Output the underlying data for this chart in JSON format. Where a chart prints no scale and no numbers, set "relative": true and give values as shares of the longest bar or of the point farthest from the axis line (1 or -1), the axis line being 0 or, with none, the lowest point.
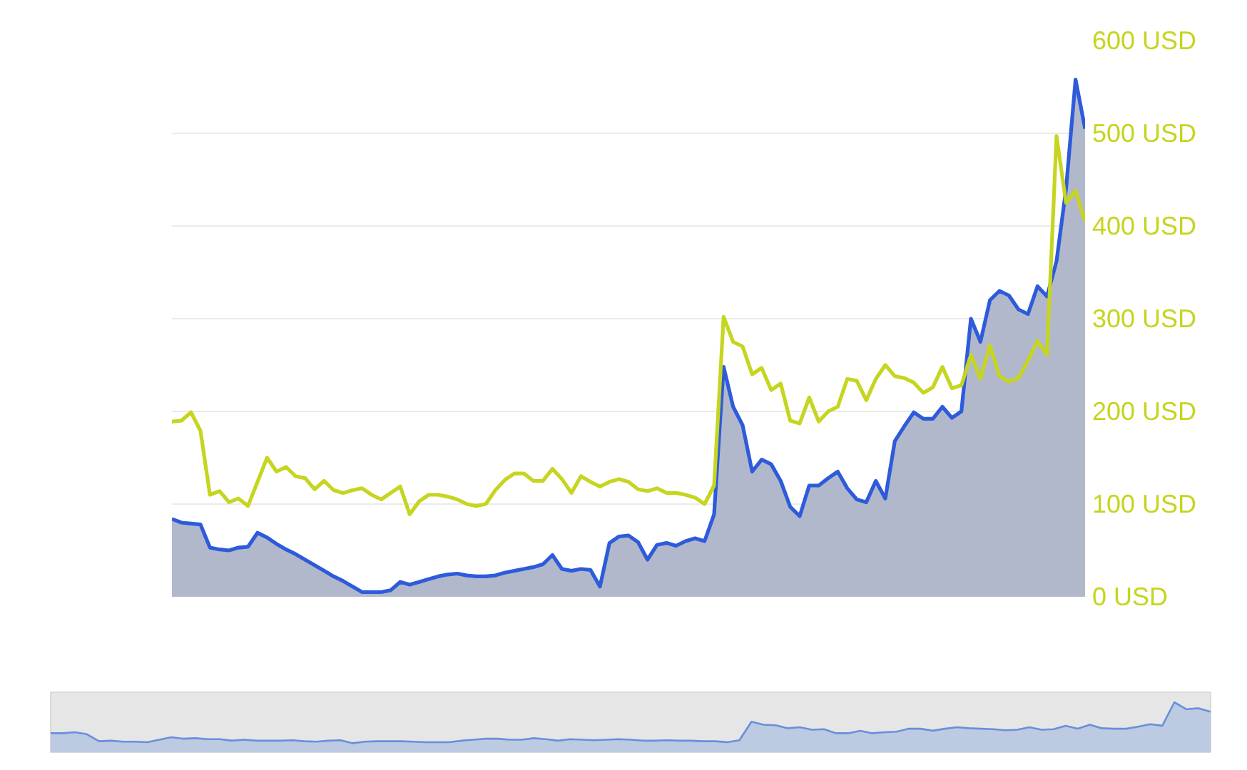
{
  "chart_data": [
    {
      "type": "line",
      "categories": [
        null,
        null,
        null,
        null,
        null,
        null,
        null,
        null,
        null,
        null,
        null,
        null,
        null,
        null,
        null,
        null,
        null,
        null,
        null,
        null,
        null,
        null,
        null,
        null,
        null,
        null,
        null,
        null,
        null,
        null,
        null,
        null,
        null,
        null,
        null,
        null,
        null,
        null,
        null,
        null,
        null,
        null,
        null,
        null,
        null,
        null,
        null,
        null,
        null,
        null,
        null,
        null,
        null,
        null,
        null,
        null,
        null,
        null,
        null,
        null,
        null,
        null,
        null,
        null,
        null,
        null,
        null,
        null,
        null,
        null,
        null,
        null,
        null,
        null,
        null,
        null,
        null,
        null,
        null,
        null,
        null,
        null,
        null,
        null,
        null,
        null,
        null,
        null,
        null,
        null,
        null,
        null,
        null,
        null,
        null,
        null,
        null
      ],
      "series": [
        {
          "color": "#c6d51f",
          "values": [
            189,
            190,
            199,
            179,
            110,
            114,
            102,
            106,
            98,
            124,
            150,
            135,
            140,
            130,
            128,
            116,
            125,
            115,
            112,
            115,
            117,
            110,
            105,
            112,
            119,
            89,
            103,
            110,
            110,
            108,
            105,
            100,
            98,
            100,
            115,
            126,
            133,
            133,
            125,
            125,
            138,
            127,
            112,
            130,
            124,
            119,
            124,
            127,
            124,
            116,
            114,
            117,
            112,
            112,
            110,
            107,
            100,
            120,
            302,
            275,
            270,
            240,
            247,
            223,
            230,
            190,
            187,
            215,
            189,
            200,
            205,
            235,
            233,
            212,
            235,
            250,
            238,
            236,
            231,
            220,
            226,
            248,
            225,
            228,
            261,
            235,
            271,
            238,
            232,
            236,
            255,
            276,
            261,
            497,
            425,
            438,
            405
          ]
        },
        {
          "type": "area",
          "color": "#2d5bdb",
          "values": [
            84,
            80,
            79,
            78,
            53,
            51,
            50,
            53,
            54,
            69,
            64,
            57,
            51,
            46,
            40,
            34,
            28,
            22,
            17,
            11,
            5,
            5,
            5,
            7,
            16,
            13,
            16,
            19,
            22,
            24,
            25,
            23,
            22,
            22,
            23,
            26,
            28,
            30,
            32,
            35,
            45,
            30,
            28,
            30,
            29,
            11,
            58,
            65,
            66,
            59,
            40,
            56,
            58,
            55,
            60,
            63,
            60,
            89,
            248,
            205,
            185,
            135,
            148,
            143,
            125,
            97,
            87,
            120,
            120,
            128,
            135,
            117,
            105,
            102,
            125,
            106,
            168,
            184,
            199,
            192,
            192,
            205,
            193,
            200,
            300,
            275,
            320,
            330,
            325,
            310,
            305,
            335,
            324,
            362,
            440,
            558,
            505
          ]
        }
      ],
      "ylim": [
        0,
        600
      ],
      "yticks": [
        {
          "value": 0,
          "label": "0 USD"
        },
        {
          "value": 100,
          "label": "100 USD"
        },
        {
          "value": 200,
          "label": "200 USD"
        },
        {
          "value": 300,
          "label": "300 USD"
        },
        {
          "value": 400,
          "label": "400 USD"
        },
        {
          "value": 500,
          "label": "500 USD"
        },
        {
          "value": 600,
          "label": "600 USD"
        }
      ],
      "grid": "y",
      "tick_labels": "y"
    },
    {
      "type": "area",
      "relative": true,
      "tick_labels": false,
      "categories": [
        null,
        null,
        null,
        null,
        null,
        null,
        null,
        null,
        null,
        null,
        null,
        null,
        null,
        null,
        null,
        null,
        null,
        null,
        null,
        null,
        null,
        null,
        null,
        null,
        null,
        null,
        null,
        null,
        null,
        null,
        null,
        null,
        null,
        null,
        null,
        null,
        null,
        null,
        null,
        null,
        null,
        null,
        null,
        null,
        null,
        null,
        null,
        null,
        null,
        null,
        null,
        null,
        null,
        null,
        null,
        null,
        null,
        null,
        null,
        null,
        null,
        null,
        null,
        null,
        null,
        null,
        null,
        null,
        null,
        null,
        null,
        null,
        null,
        null,
        null,
        null,
        null,
        null,
        null,
        null,
        null,
        null,
        null,
        null,
        null,
        null,
        null,
        null,
        null,
        null,
        null,
        null,
        null,
        null,
        null,
        null,
        null
      ],
      "color": "#6a8edc",
      "values": [
        0.38,
        0.38,
        0.4,
        0.36,
        0.22,
        0.23,
        0.21,
        0.21,
        0.2,
        0.25,
        0.3,
        0.27,
        0.28,
        0.26,
        0.26,
        0.23,
        0.25,
        0.23,
        0.23,
        0.23,
        0.24,
        0.22,
        0.21,
        0.23,
        0.24,
        0.18,
        0.21,
        0.22,
        0.22,
        0.22,
        0.21,
        0.2,
        0.2,
        0.2,
        0.23,
        0.25,
        0.27,
        0.27,
        0.25,
        0.25,
        0.28,
        0.26,
        0.23,
        0.26,
        0.25,
        0.24,
        0.25,
        0.26,
        0.25,
        0.23,
        0.23,
        0.24,
        0.23,
        0.23,
        0.22,
        0.22,
        0.2,
        0.24,
        0.61,
        0.55,
        0.54,
        0.48,
        0.5,
        0.45,
        0.46,
        0.38,
        0.38,
        0.43,
        0.38,
        0.4,
        0.41,
        0.47,
        0.47,
        0.43,
        0.47,
        0.5,
        0.48,
        0.47,
        0.46,
        0.44,
        0.45,
        0.5,
        0.45,
        0.46,
        0.53,
        0.47,
        0.55,
        0.48,
        0.47,
        0.47,
        0.51,
        0.56,
        0.53,
        1,
        0.86,
        0.88,
        0.81
      ]
    }
  ]
}
